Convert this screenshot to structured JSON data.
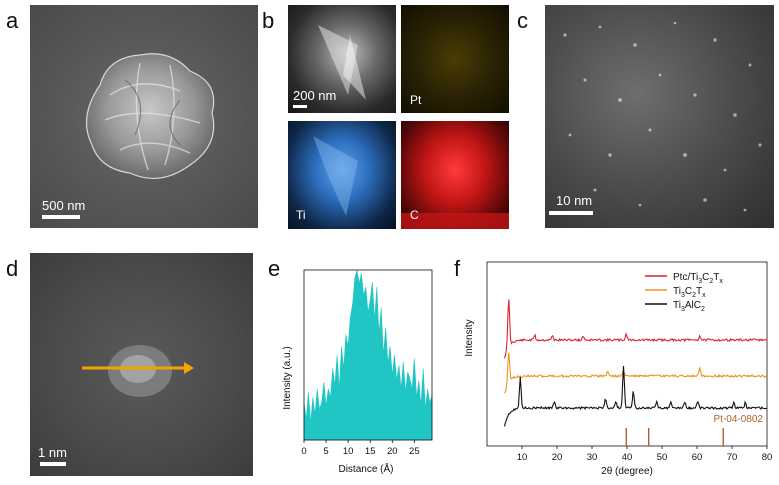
{
  "panels": {
    "a": {
      "letter": "a",
      "scale_label": "500 nm"
    },
    "b": {
      "letter": "b",
      "scale_label": "200 nm",
      "tiles": [
        "",
        "Pt",
        "Ti",
        "C"
      ]
    },
    "c": {
      "letter": "c",
      "scale_label": "10 nm"
    },
    "d": {
      "letter": "d",
      "scale_label": "1 nm"
    },
    "e": {
      "letter": "e"
    },
    "f": {
      "letter": "f"
    }
  },
  "colors": {
    "pt_map": "#4a3c06",
    "ti_map": "#2d6fbf",
    "c_map": "#c21515",
    "line_profile": "#1fc6c4",
    "arrow": "#f0a500",
    "series_ptc": "#d9262b",
    "series_ti3c2": "#f0931e",
    "series_ti3alc2": "#111111",
    "ref": "#b0622a"
  },
  "chart_data": [
    {
      "type": "area",
      "panel": "e",
      "xlabel": "Distance (Å)",
      "ylabel": "Intensity (a.u.)",
      "xlim": [
        0,
        29
      ],
      "ylim": [
        0,
        1
      ],
      "xticks": [
        0,
        5,
        10,
        15,
        20,
        25
      ],
      "x": [
        0,
        0.5,
        1,
        1.5,
        2,
        2.5,
        3,
        3.5,
        4,
        4.5,
        5,
        5.5,
        6,
        6.5,
        7,
        7.5,
        8,
        8.5,
        9,
        9.5,
        10,
        10.5,
        11,
        11.5,
        12,
        12.5,
        13,
        13.5,
        14,
        14.5,
        15,
        15.5,
        16,
        16.5,
        17,
        17.5,
        18,
        18.5,
        19,
        19.5,
        20,
        20.5,
        21,
        21.5,
        22,
        22.5,
        23,
        23.5,
        24,
        24.5,
        25,
        25.5,
        26,
        26.5,
        27,
        27.5,
        28,
        28.5,
        29
      ],
      "y": [
        0.22,
        0.12,
        0.28,
        0.1,
        0.25,
        0.15,
        0.3,
        0.18,
        0.22,
        0.34,
        0.2,
        0.3,
        0.25,
        0.42,
        0.32,
        0.5,
        0.3,
        0.55,
        0.42,
        0.62,
        0.55,
        0.72,
        0.8,
        0.95,
        1.0,
        0.92,
        0.98,
        0.85,
        0.9,
        0.75,
        0.82,
        0.93,
        0.7,
        0.9,
        0.62,
        0.78,
        0.5,
        0.66,
        0.45,
        0.55,
        0.38,
        0.5,
        0.35,
        0.44,
        0.3,
        0.46,
        0.28,
        0.4,
        0.36,
        0.3,
        0.48,
        0.25,
        0.35,
        0.2,
        0.42,
        0.18,
        0.3,
        0.22,
        0.26
      ]
    },
    {
      "type": "line",
      "panel": "f",
      "xlabel": "2θ (degree)",
      "ylabel": "Intensity",
      "xlim": [
        0,
        80
      ],
      "xticks": [
        10,
        20,
        30,
        40,
        50,
        60,
        70,
        80
      ],
      "series": [
        {
          "name": "Ptc/Ti3C2Tx",
          "legend_main": "Ptc/Ti",
          "legend_parts": [
            "Ptc/Ti",
            "3",
            "C",
            "2",
            "T",
            "x"
          ]
        },
        {
          "name": "Ti3C2Tx",
          "legend_parts": [
            "Ti",
            "3",
            "C",
            "2",
            "T",
            "x"
          ]
        },
        {
          "name": "Ti3AlC2",
          "legend_parts": [
            "Ti",
            "3",
            "AlC",
            "2"
          ]
        }
      ],
      "reference": {
        "label": "Pt-04-0802",
        "positions": [
          39.8,
          46.2,
          67.5
        ]
      }
    }
  ]
}
